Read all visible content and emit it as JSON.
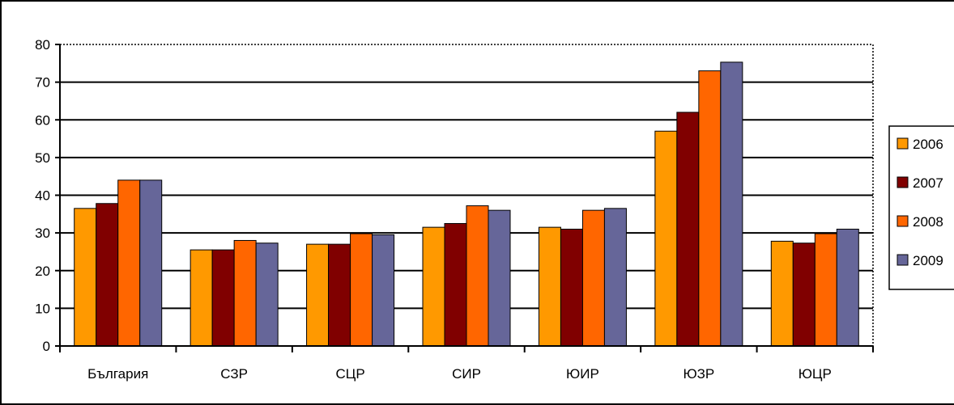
{
  "chart_data": {
    "type": "bar",
    "categories": [
      "България",
      "СЗР",
      "СЦР",
      "СИР",
      "ЮИР",
      "ЮЗР",
      "ЮЦР"
    ],
    "series": [
      {
        "name": "2006",
        "color": "#ff9900",
        "values": [
          36.5,
          25.5,
          27,
          31.5,
          31.5,
          57,
          27.8
        ]
      },
      {
        "name": "2007",
        "color": "#800000",
        "values": [
          37.8,
          25.5,
          27,
          32.5,
          31,
          62,
          27.3
        ]
      },
      {
        "name": "2008",
        "color": "#ff6600",
        "values": [
          44,
          28,
          29.8,
          37.2,
          36,
          73,
          29.8
        ]
      },
      {
        "name": "2009",
        "color": "#666699",
        "values": [
          44,
          27.3,
          29.5,
          36,
          36.5,
          75.3,
          31
        ]
      }
    ],
    "yticks": [
      "0",
      "10",
      "20",
      "30",
      "40",
      "50",
      "60",
      "70",
      "80"
    ],
    "ylim": [
      0,
      80
    ],
    "grid": true,
    "legend_position": "right"
  }
}
